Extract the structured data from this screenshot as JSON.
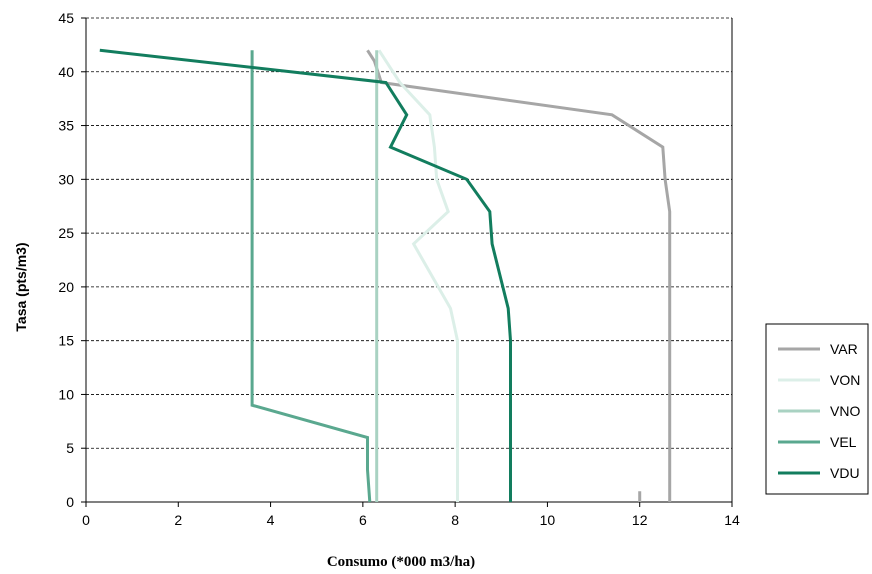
{
  "chart_data": {
    "type": "line",
    "title": "",
    "xlabel": "Consumo (*000 m3/ha)",
    "ylabel": "Tasa (pts/m3)",
    "xlim": [
      0,
      14
    ],
    "ylim": [
      0,
      45
    ],
    "x_ticks": [
      "0",
      "2",
      "4",
      "6",
      "8",
      "10",
      "12",
      "14"
    ],
    "y_ticks": [
      "0",
      "5",
      "10",
      "15",
      "20",
      "25",
      "30",
      "35",
      "40",
      "45"
    ],
    "grid": "horizontal-dashed",
    "legend_position": "right",
    "series": [
      {
        "name": "VAR",
        "color": "#a6a6a6",
        "points": [
          [
            12.65,
            0
          ],
          [
            12.65,
            27
          ],
          [
            12.55,
            30
          ],
          [
            12.5,
            33
          ],
          [
            11.4,
            36
          ],
          [
            6.4,
            39
          ],
          [
            6.25,
            41
          ],
          [
            6.1,
            42
          ]
        ]
      },
      {
        "name": "VON",
        "color": "#dcefe8",
        "points": [
          [
            8.05,
            0
          ],
          [
            8.05,
            15
          ],
          [
            7.9,
            18
          ],
          [
            7.1,
            24
          ],
          [
            7.85,
            27
          ],
          [
            7.6,
            30
          ],
          [
            7.55,
            33
          ],
          [
            7.45,
            36
          ],
          [
            6.8,
            39
          ],
          [
            6.35,
            42
          ]
        ]
      },
      {
        "name": "VNO",
        "color": "#a9d2c2",
        "points": [
          [
            6.3,
            0
          ],
          [
            6.3,
            42
          ]
        ]
      },
      {
        "name": "VEL",
        "color": "#5aa88f",
        "points": [
          [
            6.15,
            0
          ],
          [
            6.1,
            3
          ],
          [
            6.1,
            6
          ],
          [
            3.6,
            9
          ],
          [
            3.6,
            42
          ]
        ]
      },
      {
        "name": "VDU",
        "color": "#127d5e",
        "points": [
          [
            9.2,
            0
          ],
          [
            9.2,
            15
          ],
          [
            9.15,
            18
          ],
          [
            8.8,
            24
          ],
          [
            8.75,
            27
          ],
          [
            8.25,
            30
          ],
          [
            6.6,
            33
          ],
          [
            6.95,
            36
          ],
          [
            6.5,
            39
          ],
          [
            0.3,
            42
          ]
        ]
      }
    ],
    "extra_mark": {
      "x": 12,
      "y_range": [
        0,
        1
      ],
      "color": "#a6a6a6"
    }
  }
}
